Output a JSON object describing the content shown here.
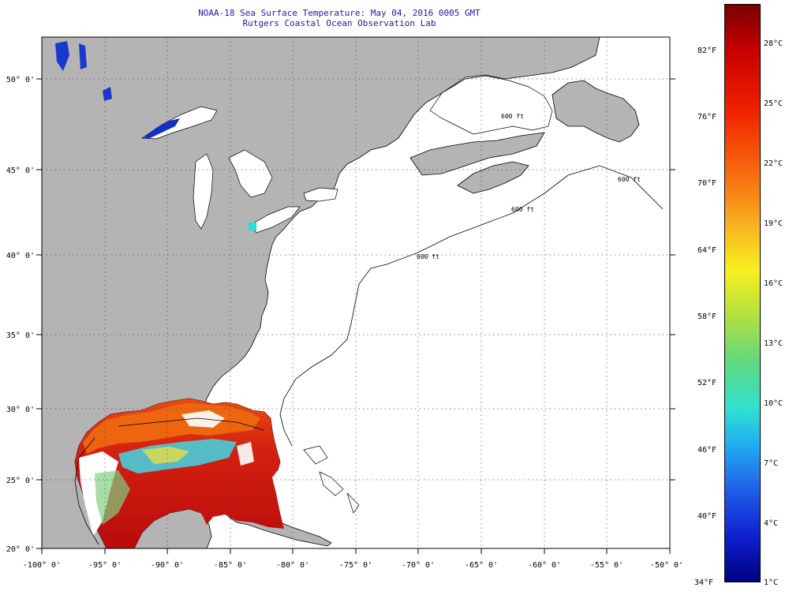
{
  "title_line1": "NOAA-18 Sea Surface Temperature:  May 04, 2016 0005 GMT",
  "title_line2": "Rutgers Coastal Ocean Observation Lab",
  "lon_labels": [
    "-100° 0'",
    "-95° 0'",
    "-90° 0'",
    "-85° 0'",
    "-80° 0'",
    "-75° 0'",
    "-70° 0'",
    "-65° 0'",
    "-60° 0'",
    "-55° 0'",
    "-50° 0'"
  ],
  "lat_labels": [
    "50° 0'",
    "45° 0'",
    "40° 0'",
    "35° 0'",
    "30° 0'",
    "25° 0'",
    "20° 0'"
  ],
  "colorbar": {
    "fahrenheit": [
      "82°F",
      "76°F",
      "70°F",
      "64°F",
      "58°F",
      "52°F",
      "46°F",
      "40°F",
      "34°F"
    ],
    "celsius": [
      "28°C",
      "25°C",
      "22°C",
      "19°C",
      "16°C",
      "13°C",
      "10°C",
      "7°C",
      "4°C",
      "1°C"
    ]
  },
  "map_labels": {
    "contour_1": "600 ft",
    "contour_2": "600 ft",
    "contour_3": "600 ft",
    "contour_4": "600 ft"
  },
  "colors": {
    "land": "#b4b4b4",
    "ocean_nodata": "#ffffff",
    "grid": "#000000",
    "title": "#1a1aa8",
    "warm": "#c81010",
    "orange": "#f06a10"
  }
}
